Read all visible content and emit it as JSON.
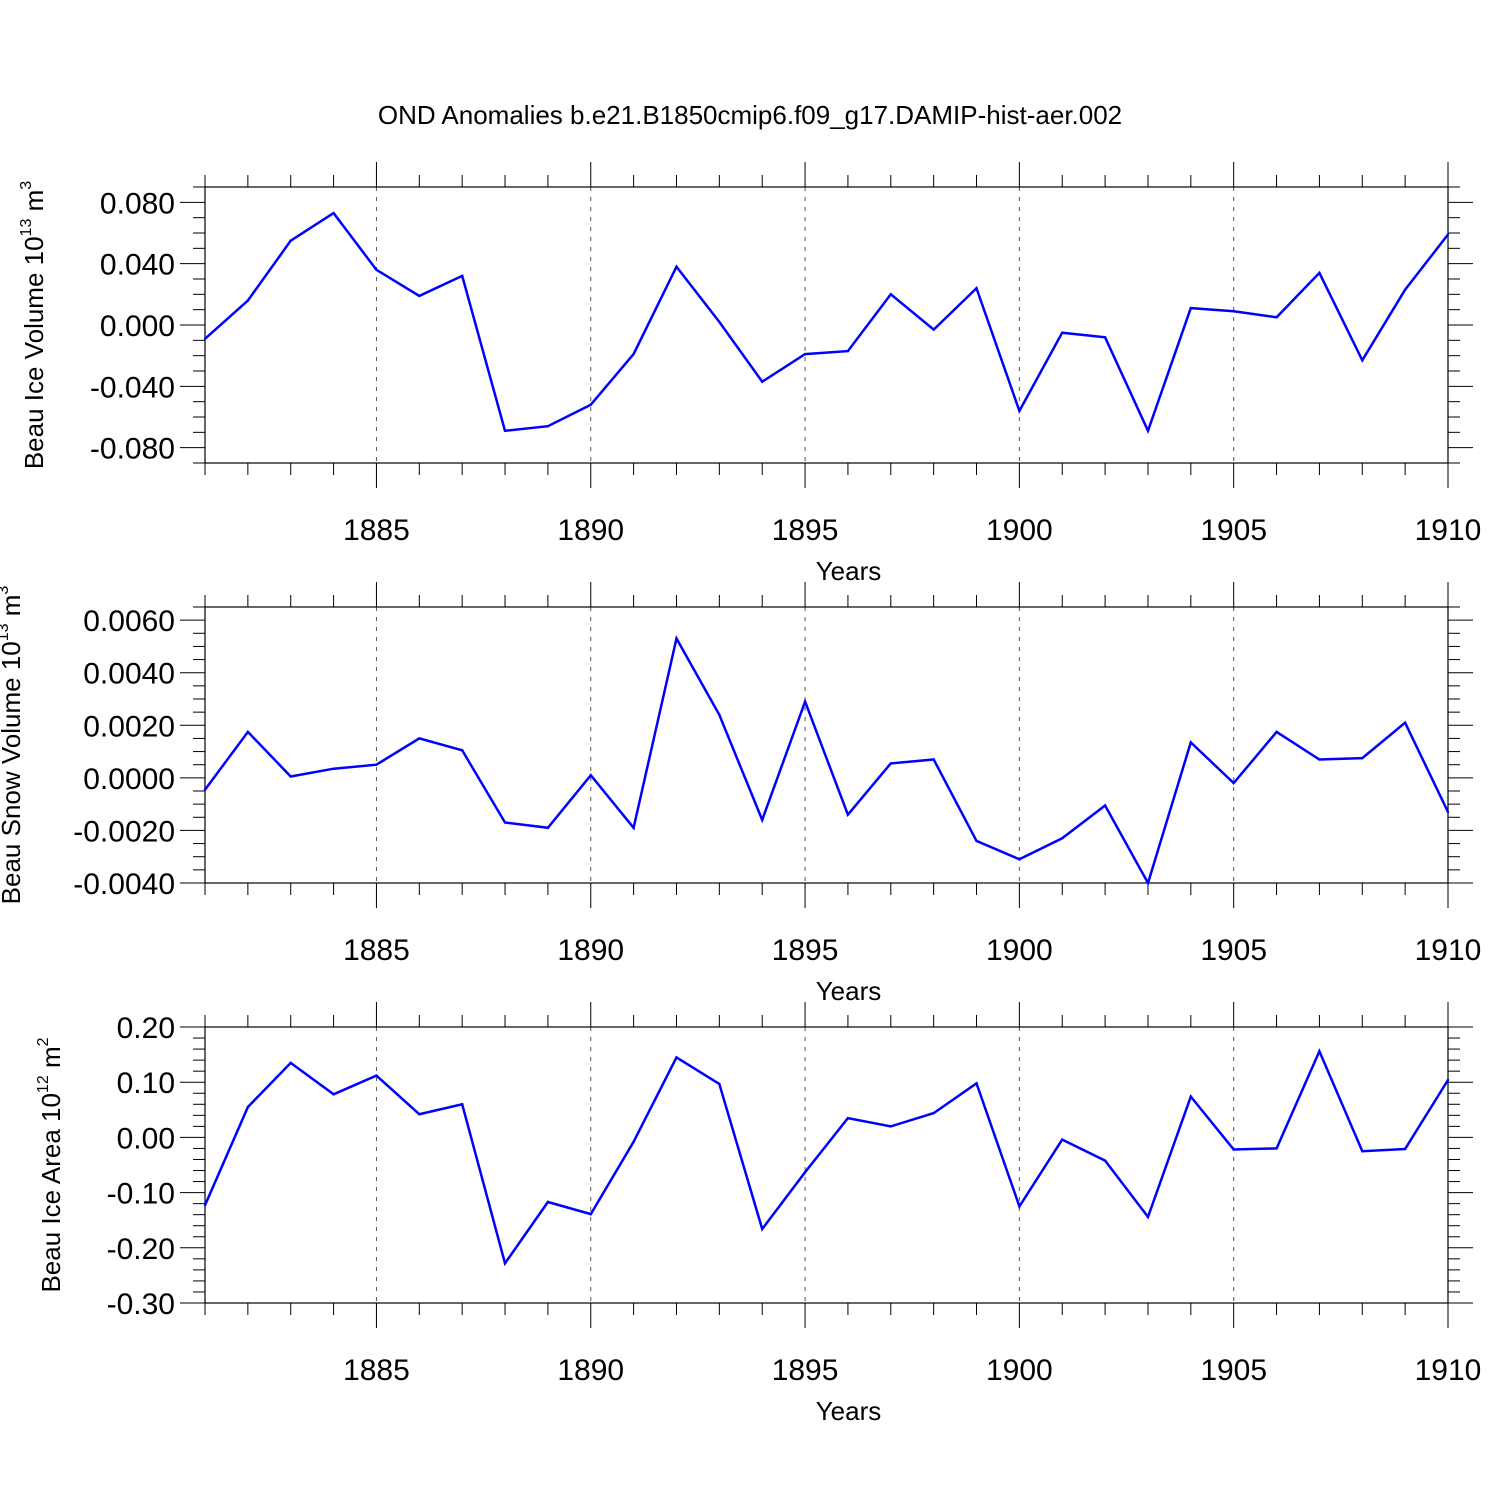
{
  "title": "OND Anomalies b.e21.B1850cmip6.f09_g17.DAMIP-hist-aer.002",
  "chart_data": [
    {
      "type": "line",
      "ylabel_main": "Beau Ice Volume 10",
      "ylabel_sup1": "13",
      "ylabel_mid": " m",
      "ylabel_sup2": "3",
      "xlabel": "Years",
      "xlim": [
        1881,
        1910
      ],
      "ylim": [
        -0.09,
        0.09
      ],
      "xticks": [
        1885,
        1890,
        1895,
        1900,
        1905,
        1910
      ],
      "xtick_labels": [
        "1885",
        "1890",
        "1895",
        "1900",
        "1905",
        "1910"
      ],
      "yticks": [
        -0.08,
        -0.04,
        0.0,
        0.04,
        0.08
      ],
      "ytick_labels": [
        "-0.080",
        "-0.040",
        "0.000",
        "0.040",
        "0.080"
      ],
      "yminor_step": 0.01,
      "grid": "dashed vertical at labeled years",
      "color": "#0000ff",
      "x": [
        1881,
        1882,
        1883,
        1884,
        1885,
        1886,
        1887,
        1888,
        1889,
        1890,
        1891,
        1892,
        1893,
        1894,
        1895,
        1896,
        1897,
        1898,
        1899,
        1900,
        1901,
        1902,
        1903,
        1904,
        1905,
        1906,
        1907,
        1908,
        1909,
        1910
      ],
      "values": [
        -0.009,
        0.016,
        0.055,
        0.073,
        0.036,
        0.019,
        0.032,
        -0.069,
        -0.066,
        -0.052,
        -0.019,
        0.038,
        0.002,
        -0.037,
        -0.019,
        -0.017,
        0.02,
        -0.003,
        0.024,
        -0.056,
        -0.005,
        -0.008,
        -0.069,
        0.011,
        0.009,
        0.005,
        0.034,
        -0.023,
        0.023,
        0.059
      ]
    },
    {
      "type": "line",
      "ylabel_main": "Beau Snow Volume 10",
      "ylabel_sup1": "13",
      "ylabel_mid": " m",
      "ylabel_sup2": "3",
      "xlabel": "Years",
      "xlim": [
        1881,
        1910
      ],
      "ylim": [
        -0.004,
        0.0065
      ],
      "xticks": [
        1885,
        1890,
        1895,
        1900,
        1905,
        1910
      ],
      "xtick_labels": [
        "1885",
        "1890",
        "1895",
        "1900",
        "1905",
        "1910"
      ],
      "yticks": [
        -0.004,
        -0.002,
        0.0,
        0.002,
        0.004,
        0.006
      ],
      "ytick_labels": [
        "-0.0040",
        "-0.0020",
        "0.0000",
        "0.0020",
        "0.0040",
        "0.0060"
      ],
      "yminor_step": 0.0005,
      "grid": "dashed vertical at labeled years",
      "color": "#0000ff",
      "x": [
        1881,
        1882,
        1883,
        1884,
        1885,
        1886,
        1887,
        1888,
        1889,
        1890,
        1891,
        1892,
        1893,
        1894,
        1895,
        1896,
        1897,
        1898,
        1899,
        1900,
        1901,
        1902,
        1903,
        1904,
        1905,
        1906,
        1907,
        1908,
        1909,
        1910
      ],
      "values": [
        -0.00045,
        0.00175,
        5e-05,
        0.00035,
        0.0005,
        0.0015,
        0.00105,
        -0.0017,
        -0.0019,
        0.0001,
        -0.0019,
        0.0053,
        0.0024,
        -0.0016,
        0.0029,
        -0.0014,
        0.00055,
        0.0007,
        -0.0024,
        -0.0031,
        -0.0023,
        -0.00105,
        -0.004,
        0.00135,
        -0.0002,
        0.00175,
        0.0007,
        0.00075,
        0.0021,
        -0.0013
      ]
    },
    {
      "type": "line",
      "ylabel_main": "Beau Ice Area 10",
      "ylabel_sup1": "12",
      "ylabel_mid": " m",
      "ylabel_sup2": "2",
      "xlabel": "Years",
      "xlim": [
        1881,
        1910
      ],
      "ylim": [
        -0.3,
        0.2
      ],
      "xticks": [
        1885,
        1890,
        1895,
        1900,
        1905,
        1910
      ],
      "xtick_labels": [
        "1885",
        "1890",
        "1895",
        "1900",
        "1905",
        "1910"
      ],
      "yticks": [
        -0.3,
        -0.2,
        -0.1,
        0.0,
        0.1,
        0.2
      ],
      "ytick_labels": [
        "-0.30",
        "-0.20",
        "-0.10",
        "0.00",
        "0.10",
        "0.20"
      ],
      "yminor_step": 0.02,
      "grid": "dashed vertical at labeled years",
      "color": "#0000ff",
      "x": [
        1881,
        1882,
        1883,
        1884,
        1885,
        1886,
        1887,
        1888,
        1889,
        1890,
        1891,
        1892,
        1893,
        1894,
        1895,
        1896,
        1897,
        1898,
        1899,
        1900,
        1901,
        1902,
        1903,
        1904,
        1905,
        1906,
        1907,
        1908,
        1909,
        1910
      ],
      "values": [
        -0.123,
        0.055,
        0.135,
        0.078,
        0.112,
        0.042,
        0.06,
        -0.228,
        -0.117,
        -0.139,
        -0.008,
        0.145,
        0.097,
        -0.166,
        -0.063,
        0.035,
        0.02,
        0.044,
        0.098,
        -0.125,
        -0.004,
        -0.042,
        -0.144,
        0.074,
        -0.022,
        -0.02,
        0.156,
        -0.025,
        -0.021,
        0.104
      ]
    }
  ]
}
